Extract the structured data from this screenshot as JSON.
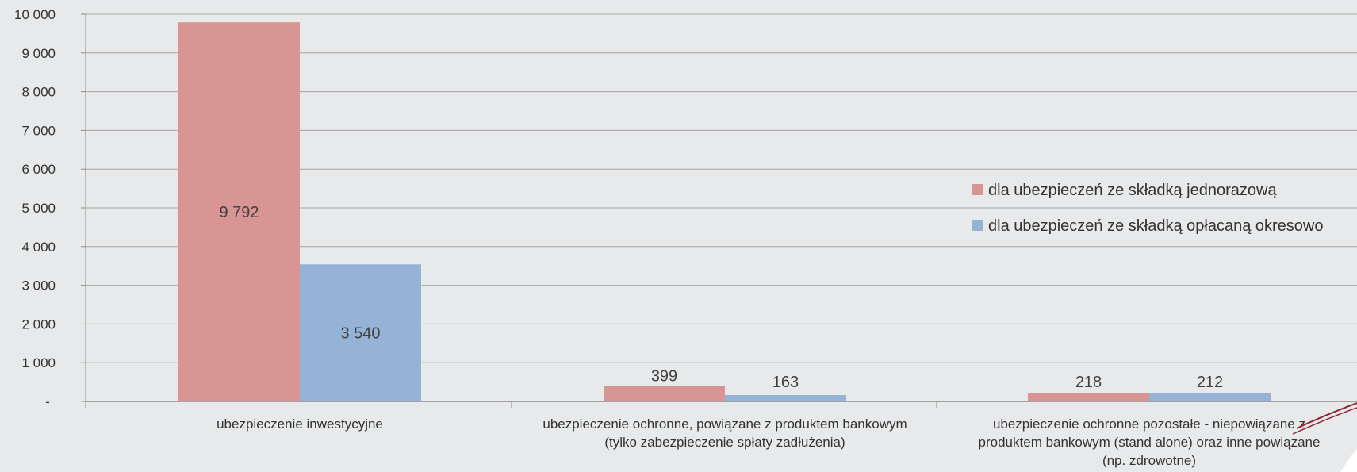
{
  "chart_data": {
    "type": "bar",
    "title": "",
    "xlabel": "",
    "ylabel": "",
    "ylim": [
      0,
      10000
    ],
    "y_ticks": [
      {
        "value": 0,
        "label": "-"
      },
      {
        "value": 1000,
        "label": "1 000"
      },
      {
        "value": 2000,
        "label": "2 000"
      },
      {
        "value": 3000,
        "label": "3 000"
      },
      {
        "value": 4000,
        "label": "4 000"
      },
      {
        "value": 5000,
        "label": "5 000"
      },
      {
        "value": 6000,
        "label": "6 000"
      },
      {
        "value": 7000,
        "label": "7 000"
      },
      {
        "value": 8000,
        "label": "8 000"
      },
      {
        "value": 9000,
        "label": "9 000"
      },
      {
        "value": 10000,
        "label": "10 000"
      }
    ],
    "grid": true,
    "legend_position": "right",
    "categories": [
      [
        "ubezpieczenie inwestycyjne"
      ],
      [
        "ubezpieczenie ochronne, powiązane z produktem bankowym",
        "(tylko zabezpieczenie spłaty zadłużenia)"
      ],
      [
        "ubezpieczenie ochronne pozostałe - niepowiązane z",
        "produktem bankowym (stand alone) oraz inne powiązane",
        "(np. zdrowotne)"
      ]
    ],
    "series": [
      {
        "name": "dla ubezpieczeń ze składką jednorazową",
        "color": "#d99594",
        "values": [
          9792,
          399,
          218
        ],
        "labels": [
          "9 792",
          "399",
          "218"
        ]
      },
      {
        "name": "dla ubezpieczeń ze składką opłacaną okresowo",
        "color": "#95b3d7",
        "values": [
          3540,
          163,
          212
        ],
        "labels": [
          "3 540",
          "163",
          "212"
        ]
      }
    ]
  }
}
